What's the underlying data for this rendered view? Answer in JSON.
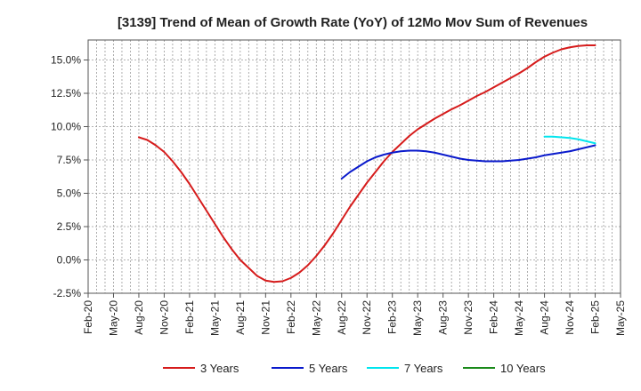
{
  "chart_data": {
    "type": "line",
    "title": "[3139]  Trend of Mean of Growth Rate (YoY) of 12Mo Mov Sum of Revenues",
    "xlabel": "",
    "ylabel": "",
    "ylim": [
      -2.5,
      16.5
    ],
    "y_ticks": [
      -2.5,
      0.0,
      2.5,
      5.0,
      7.5,
      10.0,
      12.5,
      15.0
    ],
    "y_tick_labels": [
      "-2.5%",
      "0.0%",
      "2.5%",
      "5.0%",
      "7.5%",
      "10.0%",
      "12.5%",
      "15.0%"
    ],
    "x_tick_labels": [
      "Feb-20",
      "May-20",
      "Aug-20",
      "Nov-20",
      "Feb-21",
      "May-21",
      "Aug-21",
      "Nov-21",
      "Feb-22",
      "May-22",
      "Aug-22",
      "Nov-22",
      "Feb-23",
      "May-23",
      "Aug-23",
      "Nov-23",
      "Feb-24",
      "May-24",
      "Aug-24",
      "Nov-24",
      "Feb-25",
      "May-25"
    ],
    "grid": true,
    "legend_position": "bottom",
    "series": [
      {
        "name": "3 Years",
        "color": "#d61c1c",
        "x": [
          "Aug-20",
          "Sep-20",
          "Oct-20",
          "Nov-20",
          "Dec-20",
          "Jan-21",
          "Feb-21",
          "Mar-21",
          "Apr-21",
          "May-21",
          "Jun-21",
          "Jul-21",
          "Aug-21",
          "Sep-21",
          "Oct-21",
          "Nov-21",
          "Dec-21",
          "Jan-22",
          "Feb-22",
          "Mar-22",
          "Apr-22",
          "May-22",
          "Jun-22",
          "Jul-22",
          "Aug-22",
          "Sep-22",
          "Oct-22",
          "Nov-22",
          "Dec-22",
          "Jan-23",
          "Feb-23",
          "Mar-23",
          "Apr-23",
          "May-23",
          "Jun-23",
          "Jul-23",
          "Aug-23",
          "Sep-23",
          "Oct-23",
          "Nov-23",
          "Dec-23",
          "Jan-24",
          "Feb-24",
          "Mar-24",
          "Apr-24",
          "May-24",
          "Jun-24",
          "Jul-24",
          "Aug-24",
          "Sep-24",
          "Oct-24",
          "Nov-24",
          "Dec-24",
          "Jan-25",
          "Feb-25"
        ],
        "values": [
          9.2,
          9.0,
          8.6,
          8.1,
          7.4,
          6.6,
          5.7,
          4.7,
          3.7,
          2.7,
          1.7,
          0.8,
          0.0,
          -0.6,
          -1.2,
          -1.55,
          -1.65,
          -1.6,
          -1.35,
          -0.95,
          -0.4,
          0.3,
          1.1,
          2.0,
          3.0,
          4.0,
          4.9,
          5.8,
          6.6,
          7.4,
          8.1,
          8.7,
          9.3,
          9.8,
          10.2,
          10.6,
          10.95,
          11.3,
          11.6,
          11.95,
          12.3,
          12.6,
          12.95,
          13.3,
          13.65,
          14.0,
          14.4,
          14.85,
          15.25,
          15.55,
          15.8,
          15.95,
          16.05,
          16.1,
          16.1
        ]
      },
      {
        "name": "5 Years",
        "color": "#0a1acc",
        "x": [
          "Aug-22",
          "Sep-22",
          "Oct-22",
          "Nov-22",
          "Dec-22",
          "Jan-23",
          "Feb-23",
          "Mar-23",
          "Apr-23",
          "May-23",
          "Jun-23",
          "Jul-23",
          "Aug-23",
          "Sep-23",
          "Oct-23",
          "Nov-23",
          "Dec-23",
          "Jan-24",
          "Feb-24",
          "Mar-24",
          "Apr-24",
          "May-24",
          "Jun-24",
          "Jul-24",
          "Aug-24",
          "Sep-24",
          "Oct-24",
          "Nov-24",
          "Dec-24",
          "Jan-25",
          "Feb-25"
        ],
        "values": [
          6.1,
          6.6,
          7.0,
          7.4,
          7.7,
          7.9,
          8.05,
          8.15,
          8.2,
          8.2,
          8.15,
          8.05,
          7.9,
          7.75,
          7.6,
          7.5,
          7.45,
          7.4,
          7.4,
          7.4,
          7.45,
          7.5,
          7.6,
          7.7,
          7.85,
          7.95,
          8.05,
          8.15,
          8.3,
          8.45,
          8.6
        ]
      },
      {
        "name": "7 Years",
        "color": "#00e5ee",
        "x": [
          "Aug-24",
          "Sep-24",
          "Oct-24",
          "Nov-24",
          "Dec-24",
          "Jan-25",
          "Feb-25"
        ],
        "values": [
          9.25,
          9.25,
          9.2,
          9.15,
          9.05,
          8.9,
          8.75
        ]
      },
      {
        "name": "10 Years",
        "color": "#1a8a1a",
        "x": [],
        "values": []
      }
    ]
  }
}
